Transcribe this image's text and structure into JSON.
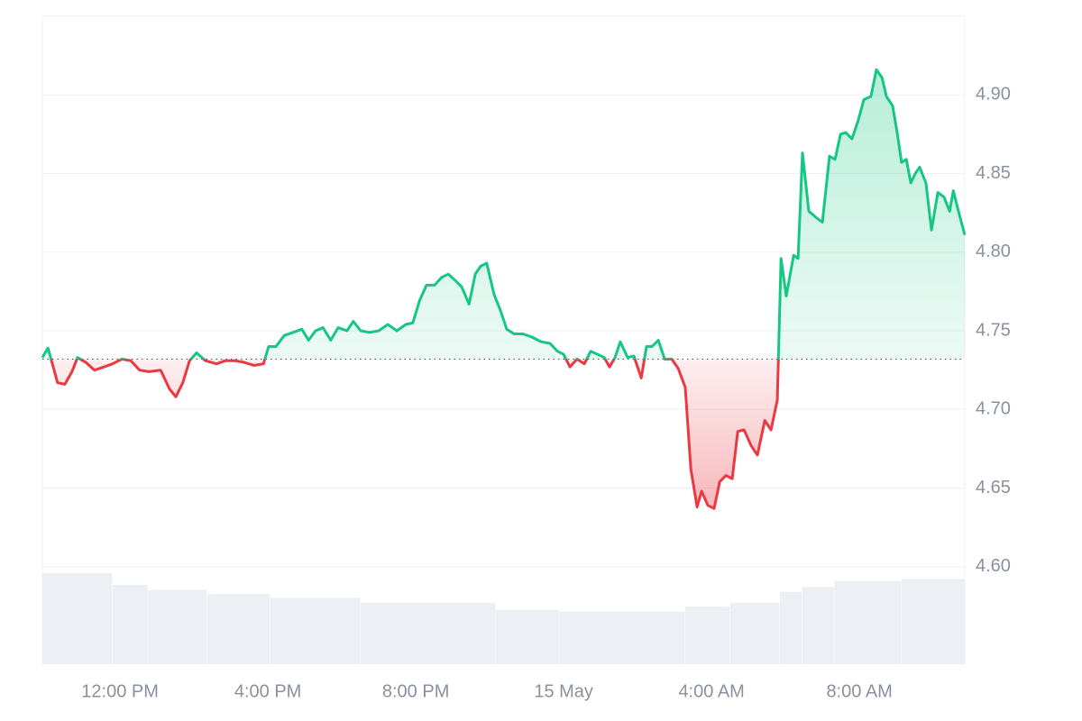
{
  "chart_data": {
    "type": "line",
    "x": [
      9.9,
      10.05,
      10.17,
      10.31,
      10.51,
      10.7,
      10.85,
      11.07,
      11.31,
      11.56,
      11.8,
      12.05,
      12.29,
      12.53,
      12.78,
      13.1,
      13.34,
      13.51,
      13.7,
      13.88,
      14.07,
      14.31,
      14.61,
      14.85,
      15.1,
      15.34,
      15.63,
      15.88,
      16.02,
      16.22,
      16.44,
      16.68,
      16.92,
      17.1,
      17.29,
      17.49,
      17.7,
      17.9,
      18.14,
      18.31,
      18.51,
      18.75,
      19.0,
      19.24,
      19.49,
      19.73,
      19.92,
      20.1,
      20.29,
      20.51,
      20.7,
      20.88,
      21.07,
      21.24,
      21.44,
      21.61,
      21.75,
      21.92,
      22.12,
      22.29,
      22.46,
      22.66,
      22.9,
      23.14,
      23.39,
      23.63,
      23.83,
      24.0,
      24.17,
      24.36,
      24.56,
      24.73,
      24.92,
      25.1,
      25.24,
      25.39,
      25.53,
      25.73,
      25.9,
      26.1,
      26.24,
      26.39,
      26.56,
      26.73,
      26.92,
      27.1,
      27.29,
      27.44,
      27.61,
      27.73,
      27.9,
      28.07,
      28.22,
      28.39,
      28.56,
      28.71,
      28.88,
      29.07,
      29.24,
      29.44,
      29.61,
      29.78,
      29.88,
      30.02,
      30.22,
      30.34,
      30.46,
      30.63,
      30.83,
      31.0,
      31.19,
      31.34,
      31.49,
      31.63,
      31.8,
      31.97,
      32.12,
      32.31,
      32.46,
      32.61,
      32.73,
      32.9,
      33.02,
      33.14,
      33.27,
      33.39,
      33.51,
      33.63,
      33.8,
      33.95,
      34.12,
      34.29,
      34.44,
      34.54,
      34.68,
      34.85
    ],
    "values": [
      4.733,
      4.739,
      4.729,
      4.717,
      4.716,
      4.724,
      4.733,
      4.73,
      4.725,
      4.727,
      4.729,
      4.732,
      4.731,
      4.725,
      4.724,
      4.725,
      4.713,
      4.708,
      4.717,
      4.731,
      4.736,
      4.731,
      4.729,
      4.731,
      4.731,
      4.73,
      4.728,
      4.729,
      4.74,
      4.74,
      4.747,
      4.749,
      4.751,
      4.744,
      4.75,
      4.752,
      4.744,
      4.752,
      4.75,
      4.756,
      4.75,
      4.749,
      4.75,
      4.754,
      4.75,
      4.754,
      4.755,
      4.769,
      4.779,
      4.779,
      4.784,
      4.786,
      4.782,
      4.778,
      4.767,
      4.786,
      4.791,
      4.793,
      4.773,
      4.763,
      4.751,
      4.748,
      4.748,
      4.746,
      4.743,
      4.742,
      4.737,
      4.735,
      4.727,
      4.732,
      4.729,
      4.737,
      4.735,
      4.733,
      4.727,
      4.733,
      4.743,
      4.733,
      4.734,
      4.72,
      4.74,
      4.74,
      4.744,
      4.732,
      4.732,
      4.726,
      4.714,
      4.662,
      4.638,
      4.648,
      4.639,
      4.637,
      4.654,
      4.658,
      4.656,
      4.686,
      4.687,
      4.677,
      4.671,
      4.693,
      4.687,
      4.706,
      4.796,
      4.772,
      4.798,
      4.796,
      4.863,
      4.826,
      4.822,
      4.819,
      4.861,
      4.859,
      4.875,
      4.876,
      4.872,
      4.884,
      4.897,
      4.899,
      4.916,
      4.911,
      4.899,
      4.893,
      4.876,
      4.857,
      4.859,
      4.844,
      4.85,
      4.854,
      4.844,
      4.814,
      4.838,
      4.835,
      4.826,
      4.839,
      4.826,
      4.811
    ],
    "baseline": 4.732,
    "up_color": "#16c784",
    "down_color": "#ea3943",
    "xlim": [
      9.9,
      34.85
    ],
    "xticks": [
      {
        "value": 12,
        "label": "12:00 PM"
      },
      {
        "value": 16,
        "label": "4:00 PM"
      },
      {
        "value": 20,
        "label": "8:00 PM"
      },
      {
        "value": 24,
        "label": "15 May"
      },
      {
        "value": 28,
        "label": "4:00 AM"
      },
      {
        "value": 32,
        "label": "8:00 AM"
      }
    ],
    "ylim": [
      4.538,
      4.95
    ],
    "yticks": [
      {
        "value": 4.6,
        "label": "4.60"
      },
      {
        "value": 4.65,
        "label": "4.65"
      },
      {
        "value": 4.7,
        "label": "4.70"
      },
      {
        "value": 4.75,
        "label": "4.75"
      },
      {
        "value": 4.8,
        "label": "4.80"
      },
      {
        "value": 4.85,
        "label": "4.85"
      },
      {
        "value": 4.9,
        "label": "4.90"
      }
    ],
    "grid": true,
    "volume": {
      "bins": [
        9.9,
        11.8,
        12.76,
        14.36,
        16.07,
        18.51,
        22.17,
        23.88,
        27.29,
        28.51,
        29.85,
        30.46,
        31.32,
        33.14,
        34.85
      ],
      "values": [
        92,
        80,
        75,
        71,
        67,
        62,
        55,
        53,
        58,
        62,
        73,
        78,
        84,
        86
      ],
      "lim": [
        0,
        100
      ],
      "color": "#eceff3"
    }
  }
}
